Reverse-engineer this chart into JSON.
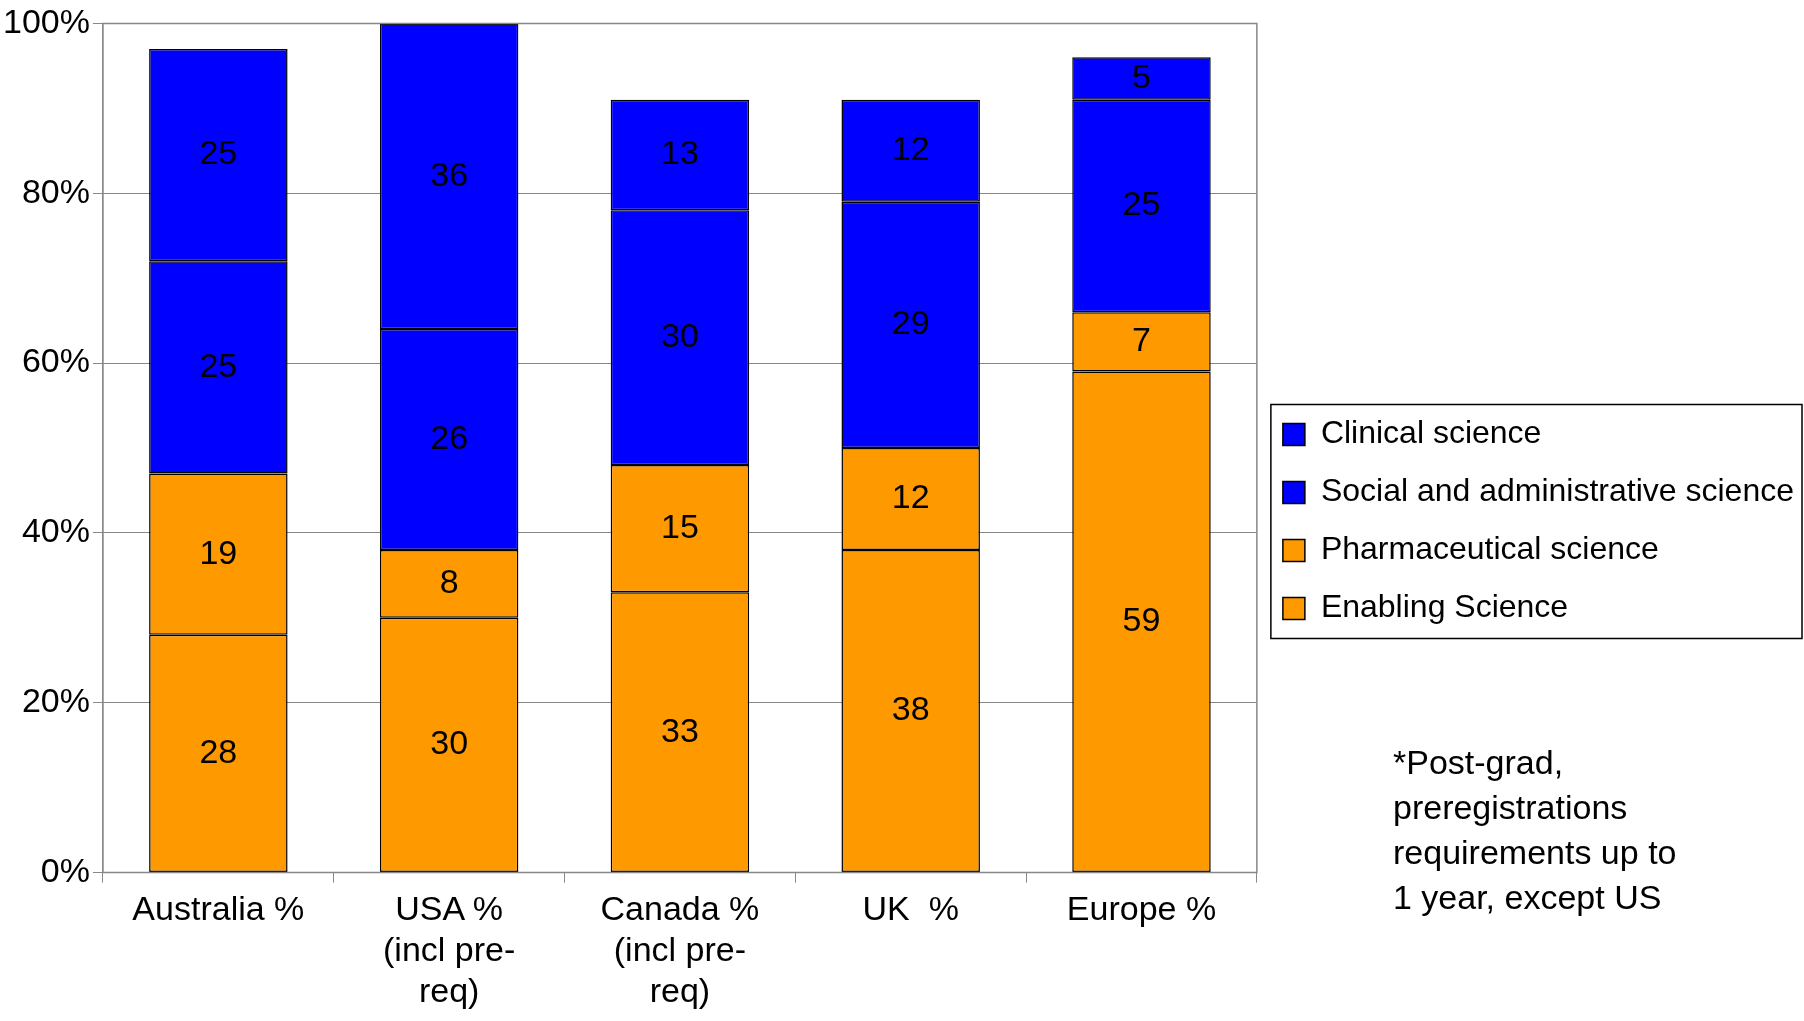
{
  "chart_data": {
    "type": "bar",
    "stacked": true,
    "categories": [
      "Australia %",
      "USA % (incl pre-req)",
      "Canada % (incl pre-req)",
      "UK  %",
      "Europe %"
    ],
    "series": [
      {
        "name": "Enabling Science",
        "color": "#ff9900",
        "values": [
          28,
          30,
          33,
          38,
          59
        ]
      },
      {
        "name": "Pharmaceutical science",
        "color": "#ff9900",
        "values": [
          19,
          8,
          15,
          12,
          7
        ]
      },
      {
        "name": "Social and administrative science",
        "color": "#0000ff",
        "values": [
          25,
          26,
          30,
          29,
          25
        ]
      },
      {
        "name": "Clinical science",
        "color": "#0000ff",
        "values": [
          25,
          36,
          13,
          12,
          5
        ]
      }
    ],
    "ylim": [
      0,
      100
    ],
    "yticks": [
      {
        "value": 0,
        "label": "0%"
      },
      {
        "value": 20,
        "label": "20%"
      },
      {
        "value": 40,
        "label": "40%"
      },
      {
        "value": 60,
        "label": "60%"
      },
      {
        "value": 80,
        "label": "80%"
      },
      {
        "value": 100,
        "label": "100%"
      }
    ],
    "grid": "y",
    "legend": "right",
    "data_labels": true,
    "annotations": [
      "*Post-grad, preregistrations requirements up to 1 year, except US"
    ]
  }
}
